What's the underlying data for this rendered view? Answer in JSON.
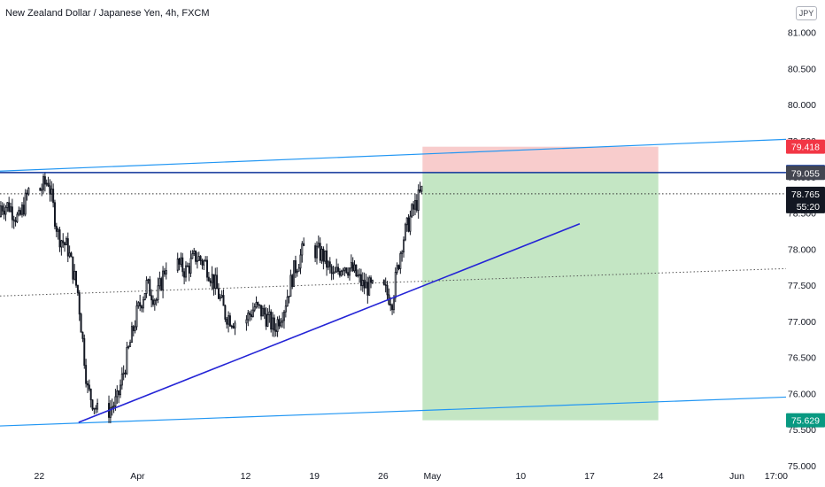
{
  "header": {
    "title": "New Zealand Dollar / Japanese Yen, 4h, FXCM",
    "currency": "JPY"
  },
  "colors": {
    "candle": "#131722",
    "channel": "#2196f3",
    "trendline": "#2424d6",
    "resistance": "#0c3299",
    "stop_zone": "#f8cccc",
    "target_zone": "#c4e6c4",
    "stop_tag": "#f23645",
    "entry_tag": "#0c3299",
    "target_tag": "#089981",
    "last_tag": "#131722"
  },
  "chart_data": {
    "type": "candlestick",
    "title": "New Zealand Dollar / Japanese Yen, 4h, FXCM",
    "ylim": [
      74.95,
      81.45
    ],
    "y_axis_position": "right",
    "grid": false,
    "y_tick_labels": [
      "81.000",
      "80.500",
      "80.000",
      "79.500",
      "79.000",
      "78.500",
      "78.000",
      "77.500",
      "77.000",
      "76.500",
      "76.000",
      "75.500",
      "75.000"
    ],
    "x_tick_labels": [
      "22",
      "Apr",
      "12",
      "19",
      "26",
      "May",
      "10",
      "17",
      "24",
      "Jun",
      "17:00"
    ],
    "x_date_range": [
      "2021-03-18",
      "2021-06-06"
    ],
    "series": [
      {
        "x": [
          "2021-03-18",
          "2021-03-19",
          "2021-03-20",
          "2021-03-22",
          "2021-03-23",
          "2021-03-24",
          "2021-03-25",
          "2021-03-26",
          "2021-03-27",
          "2021-03-29",
          "2021-03-30",
          "2021-03-31",
          "2021-04-01",
          "2021-04-02",
          "2021-04-03",
          "2021-04-05",
          "2021-04-06",
          "2021-04-07",
          "2021-04-08",
          "2021-04-09",
          "2021-04-10",
          "2021-04-12",
          "2021-04-13",
          "2021-04-14",
          "2021-04-15",
          "2021-04-16",
          "2021-04-17",
          "2021-04-19",
          "2021-04-20",
          "2021-04-21",
          "2021-04-22",
          "2021-04-23",
          "2021-04-24",
          "2021-04-26",
          "2021-04-27",
          "2021-04-28",
          "2021-04-29"
        ],
        "close": [
          78.6,
          78.4,
          78.8,
          78.95,
          78.2,
          78.0,
          77.4,
          76.05,
          75.75,
          75.9,
          76.5,
          77.1,
          77.5,
          77.3,
          77.8,
          77.7,
          77.9,
          77.8,
          77.5,
          77.1,
          77.0,
          77.2,
          77.1,
          76.9,
          77.2,
          77.7,
          78.0,
          77.9,
          77.6,
          77.8,
          77.7,
          77.5,
          77.45,
          77.3,
          78.1,
          78.5,
          78.8
        ]
      }
    ],
    "annotations": {
      "price_tags": {
        "stop_loss": "79.418",
        "resistance": "79.067",
        "entry": "79.055",
        "last_price": "78.765",
        "countdown": "55:20",
        "take_profit": "75.629"
      },
      "resistance_level": 79.06,
      "last_price_level": 78.765,
      "channel_upper": [
        [
          "2021-03-18",
          79.08
        ],
        [
          "2021-06-06",
          79.52
        ]
      ],
      "channel_lower": [
        [
          "2021-03-18",
          75.55
        ],
        [
          "2021-06-06",
          75.95
        ]
      ],
      "channel_mid": [
        [
          "2021-03-18",
          77.35
        ],
        [
          "2021-06-06",
          77.73
        ]
      ],
      "trendline": [
        [
          "2021-03-26",
          75.6
        ],
        [
          "2021-05-16",
          78.35
        ]
      ],
      "position": {
        "type": "short",
        "start": "2021-04-30",
        "end": "2021-05-24",
        "entry": 79.055,
        "stop": 79.418,
        "target": 75.629
      }
    }
  }
}
